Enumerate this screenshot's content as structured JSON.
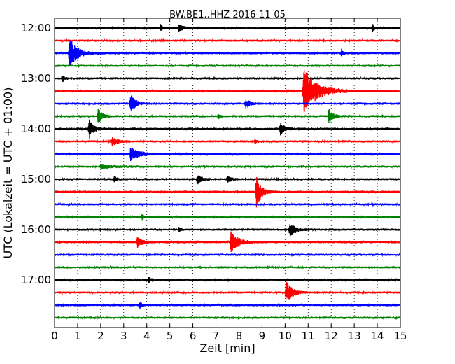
{
  "chart_data": {
    "type": "line",
    "title": "BW.BE1..HHZ 2016-11-05",
    "xlabel": "Zeit  [min]",
    "ylabel": "UTC (Lokalzeit = UTC + 01:00)",
    "xlim": [
      0,
      15
    ],
    "x_ticks": [
      0,
      1,
      2,
      3,
      4,
      5,
      6,
      7,
      8,
      9,
      10,
      11,
      12,
      13,
      14,
      15
    ],
    "x_tick_labels": [
      "0",
      "1",
      "2",
      "3",
      "4",
      "5",
      "6",
      "7",
      "8",
      "9",
      "10",
      "11",
      "12",
      "13",
      "14",
      "15"
    ],
    "y_tick_labels": [
      "12:00",
      "13:00",
      "14:00",
      "15:00",
      "16:00",
      "17:00"
    ],
    "y_tick_rows": [
      0,
      4,
      8,
      12,
      16,
      20
    ],
    "grid": "vertical dotted",
    "colors_cycle": [
      "#000000",
      "#ff0000",
      "#0000ff",
      "#008000"
    ],
    "traces": [
      {
        "start": "12:00",
        "events": [
          {
            "x": 4.6,
            "amp": 0.25,
            "dur": 0.1
          },
          {
            "x": 5.4,
            "amp": 0.3,
            "dur": 0.3
          },
          {
            "x": 13.8,
            "amp": 0.25,
            "dur": 0.1
          }
        ]
      },
      {
        "start": "12:15",
        "events": []
      },
      {
        "start": "12:30",
        "events": [
          {
            "x": 0.65,
            "amp": 1.0,
            "dur": 0.7
          },
          {
            "x": 12.45,
            "amp": 0.3,
            "dur": 0.1
          }
        ]
      },
      {
        "start": "12:45",
        "events": []
      },
      {
        "start": "13:00",
        "events": [
          {
            "x": 0.35,
            "amp": 0.35,
            "dur": 0.1
          }
        ]
      },
      {
        "start": "13:15",
        "events": [
          {
            "x": 10.8,
            "amp": 1.6,
            "dur": 1.2
          }
        ]
      },
      {
        "start": "13:30",
        "events": [
          {
            "x": 3.3,
            "amp": 0.6,
            "dur": 0.4
          },
          {
            "x": 8.3,
            "amp": 0.35,
            "dur": 0.3
          }
        ]
      },
      {
        "start": "13:45",
        "events": [
          {
            "x": 1.9,
            "amp": 0.55,
            "dur": 0.3
          },
          {
            "x": 7.1,
            "amp": 0.2,
            "dur": 0.1
          },
          {
            "x": 11.9,
            "amp": 0.55,
            "dur": 0.3
          }
        ]
      },
      {
        "start": "14:00",
        "events": [
          {
            "x": 1.5,
            "amp": 0.75,
            "dur": 0.3
          },
          {
            "x": 9.8,
            "amp": 0.5,
            "dur": 0.3
          }
        ]
      },
      {
        "start": "14:15",
        "events": [
          {
            "x": 2.5,
            "amp": 0.3,
            "dur": 0.5
          },
          {
            "x": 8.7,
            "amp": 0.2,
            "dur": 0.1
          }
        ]
      },
      {
        "start": "14:30",
        "events": [
          {
            "x": 3.3,
            "amp": 0.45,
            "dur": 0.8
          }
        ]
      },
      {
        "start": "14:45",
        "events": [
          {
            "x": 2.0,
            "amp": 0.15,
            "dur": 1.0
          }
        ]
      },
      {
        "start": "15:00",
        "events": [
          {
            "x": 2.6,
            "amp": 0.2,
            "dur": 0.2
          },
          {
            "x": 6.2,
            "amp": 0.35,
            "dur": 0.3
          },
          {
            "x": 7.5,
            "amp": 0.2,
            "dur": 0.3
          }
        ]
      },
      {
        "start": "15:15",
        "events": [
          {
            "x": 8.75,
            "amp": 1.2,
            "dur": 0.4
          }
        ]
      },
      {
        "start": "15:30",
        "events": []
      },
      {
        "start": "15:45",
        "events": [
          {
            "x": 3.8,
            "amp": 0.2,
            "dur": 0.1
          }
        ]
      },
      {
        "start": "16:00",
        "events": [
          {
            "x": 5.4,
            "amp": 0.15,
            "dur": 0.1
          },
          {
            "x": 10.2,
            "amp": 0.45,
            "dur": 0.5
          }
        ]
      },
      {
        "start": "16:15",
        "events": [
          {
            "x": 3.6,
            "amp": 0.4,
            "dur": 0.4
          },
          {
            "x": 7.65,
            "amp": 0.75,
            "dur": 0.6
          }
        ]
      },
      {
        "start": "16:30",
        "events": []
      },
      {
        "start": "16:45",
        "events": []
      },
      {
        "start": "17:00",
        "events": [
          {
            "x": 4.1,
            "amp": 0.25,
            "dur": 0.15
          }
        ]
      },
      {
        "start": "17:15",
        "events": [
          {
            "x": 10.05,
            "amp": 0.8,
            "dur": 0.5
          }
        ]
      },
      {
        "start": "17:30",
        "events": [
          {
            "x": 3.7,
            "amp": 0.3,
            "dur": 0.1
          }
        ]
      },
      {
        "start": "17:45",
        "events": []
      }
    ]
  }
}
